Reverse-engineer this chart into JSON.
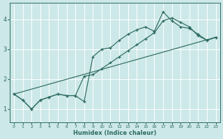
{
  "xlabel": "Humidex (Indice chaleur)",
  "background_color": "#cde8e8",
  "grid_color": "#ffffff",
  "line_color": "#2d6b60",
  "xlim": [
    -0.5,
    23.5
  ],
  "ylim": [
    0.55,
    4.55
  ],
  "xticks": [
    0,
    1,
    2,
    3,
    4,
    5,
    6,
    7,
    8,
    9,
    10,
    11,
    12,
    13,
    14,
    15,
    16,
    17,
    18,
    19,
    20,
    21,
    22,
    23
  ],
  "yticks": [
    1,
    2,
    3,
    4
  ],
  "line1_x": [
    0,
    1,
    2,
    3,
    4,
    5,
    6,
    7,
    8,
    9,
    10,
    11,
    12,
    13,
    14,
    15,
    16,
    17,
    18,
    19,
    20,
    21,
    22,
    23
  ],
  "line1_y": [
    1.5,
    1.3,
    1.0,
    1.3,
    1.4,
    1.5,
    1.45,
    1.45,
    1.25,
    2.75,
    3.0,
    3.05,
    3.3,
    3.5,
    3.65,
    3.75,
    3.6,
    4.25,
    3.95,
    3.75,
    3.7,
    3.5,
    3.3,
    3.4
  ],
  "line2_x": [
    0,
    1,
    2,
    3,
    4,
    5,
    6,
    7,
    8,
    9,
    10,
    11,
    12,
    13,
    14,
    15,
    16,
    17,
    18,
    19,
    20,
    21,
    22,
    23
  ],
  "line2_y": [
    1.5,
    1.3,
    1.0,
    1.3,
    1.4,
    1.5,
    1.45,
    1.45,
    2.1,
    2.15,
    2.35,
    2.55,
    2.75,
    2.95,
    3.15,
    3.35,
    3.55,
    3.95,
    4.05,
    3.9,
    3.75,
    3.45,
    3.3,
    3.4
  ],
  "line3_x": [
    0,
    23
  ],
  "line3_y": [
    1.5,
    3.4
  ]
}
